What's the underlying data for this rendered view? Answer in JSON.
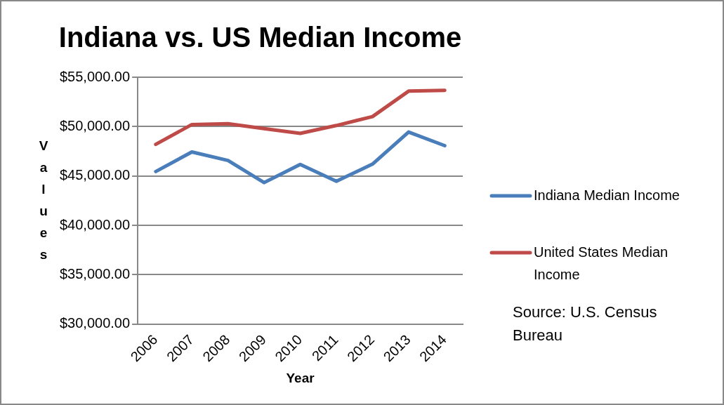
{
  "chart_data": {
    "type": "line",
    "title": "Indiana vs. US Median Income",
    "xlabel": "Year",
    "ylabel": "Values",
    "categories": [
      "2006",
      "2007",
      "2008",
      "2009",
      "2010",
      "2011",
      "2012",
      "2013",
      "2014"
    ],
    "series": [
      {
        "name": "Indiana Median Income",
        "color": "#4a7ebb",
        "values": [
          45450,
          47430,
          46570,
          44330,
          46170,
          44470,
          46200,
          49450,
          48070
        ]
      },
      {
        "name": "United States Median Income",
        "color": "#be4b48",
        "values": [
          48200,
          50210,
          50290,
          49790,
          49310,
          50110,
          51010,
          53590,
          53670
        ]
      }
    ],
    "ylim": [
      30000,
      55000
    ],
    "yticks": [
      {
        "value": 30000,
        "label": "$30,000.00"
      },
      {
        "value": 35000,
        "label": "$35,000.00"
      },
      {
        "value": 40000,
        "label": "$40,000.00"
      },
      {
        "value": 45000,
        "label": "$45,000.00"
      },
      {
        "value": 50000,
        "label": "$50,000.00"
      },
      {
        "value": 55000,
        "label": "$55,000.00"
      }
    ],
    "grid": "y",
    "legend": "right",
    "marker": "none",
    "line_style": "solid",
    "annotations": [
      "Source: U.S. Census Bureau"
    ]
  }
}
